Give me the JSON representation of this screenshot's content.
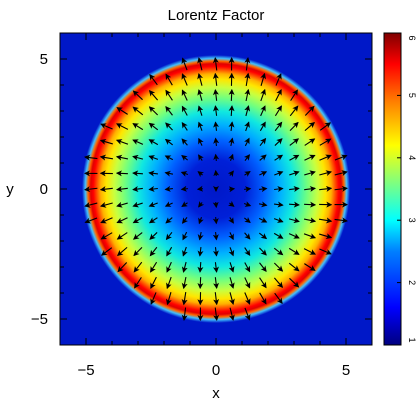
{
  "chart_data": {
    "type": "heatmap",
    "title": "Lorentz Factor",
    "xlabel": "x",
    "ylabel": "y",
    "xlim": [
      -6,
      6
    ],
    "ylim": [
      -6,
      6
    ],
    "x_ticks": [
      -5,
      0,
      5
    ],
    "y_ticks": [
      -5,
      0,
      5
    ],
    "x_tick_labels": [
      "−5",
      "0",
      "5"
    ],
    "y_tick_labels": [
      "−5",
      "0",
      "5"
    ],
    "colorbar": {
      "range": [
        1,
        6
      ],
      "ticks": [
        1,
        2,
        3,
        4,
        5,
        6
      ],
      "tick_labels": [
        "1",
        "2",
        "3",
        "4",
        "5",
        "6"
      ],
      "colormap": [
        "#00007f",
        "#0000ff",
        "#007fff",
        "#00ffff",
        "#7fff7f",
        "#ffff00",
        "#ff7f00",
        "#ff0000",
        "#7f0000"
      ]
    },
    "field": {
      "description": "radially symmetric ring",
      "background_value": 1.0,
      "center_value": 1.3,
      "ring_peak_radius": 4.4,
      "ring_peak_value": 6.0,
      "outer_edge_radius": 5.0
    },
    "vector_field": {
      "grid_spacing": 0.6,
      "max_radius": 5.0,
      "direction": "outward radial with slight rotation"
    },
    "grid": false,
    "colorbar_placement": "right"
  }
}
